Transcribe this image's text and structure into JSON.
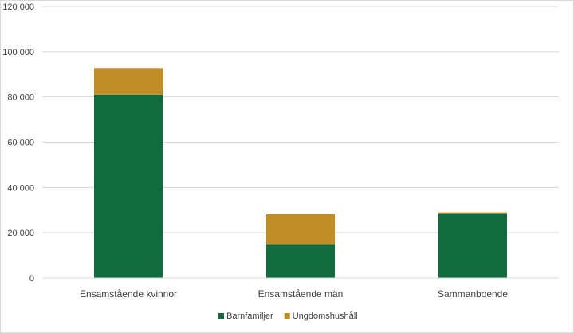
{
  "chart_data": {
    "type": "bar",
    "stacked": true,
    "categories": [
      "Ensamstående kvinnor",
      "Ensamstående män",
      "Sammanboende"
    ],
    "series": [
      {
        "name": "Barnfamiljer",
        "values": [
          81000,
          15000,
          28500
        ],
        "color": "#126b3e"
      },
      {
        "name": "Ungdomshushåll",
        "values": [
          11800,
          13200,
          500
        ],
        "color": "#c18d27"
      }
    ],
    "ylim": [
      0,
      120000
    ],
    "yticks": [
      0,
      20000,
      40000,
      60000,
      80000,
      100000,
      120000
    ],
    "ytick_labels": [
      "0",
      "20 000",
      "40 000",
      "60 000",
      "80 000",
      "100 000",
      "120 000"
    ],
    "grid": true,
    "legend": "bottom"
  }
}
